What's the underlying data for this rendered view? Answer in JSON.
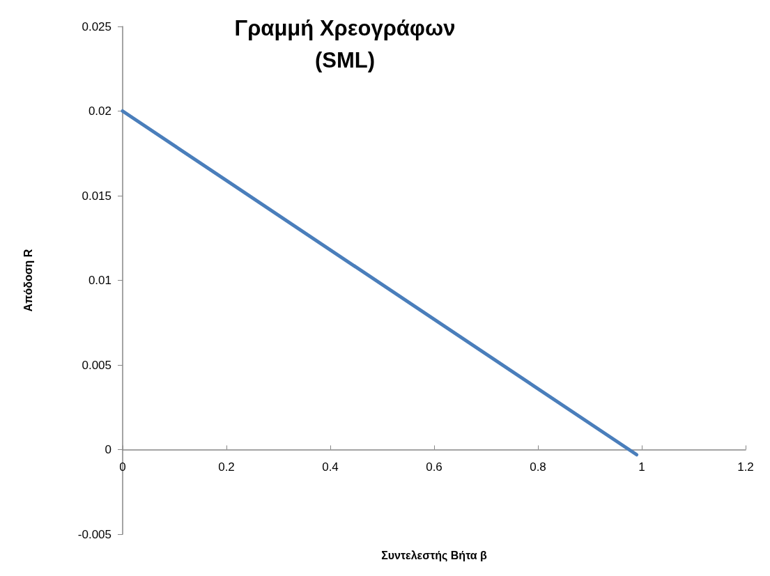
{
  "chart_data": {
    "type": "line",
    "title": "Γραμμή Χρεογράφων\n(SML)",
    "xlabel": "Συντελεστής Βήτα β",
    "ylabel": "Απόδοση R",
    "x": [
      0,
      0.99
    ],
    "series": [
      {
        "color": "#4a7ebb",
        "values": [
          0.02,
          -0.0003
        ]
      }
    ],
    "xlim": [
      0,
      1.2
    ],
    "xticks": [
      0,
      0.2,
      0.4,
      0.6,
      0.8,
      1,
      1.2
    ],
    "ylim": [
      -0.005,
      0.025
    ],
    "yticks": [
      -0.005,
      0,
      0.005,
      0.01,
      0.015,
      0.02,
      0.025
    ],
    "marker": "none",
    "line_style": "solid"
  }
}
